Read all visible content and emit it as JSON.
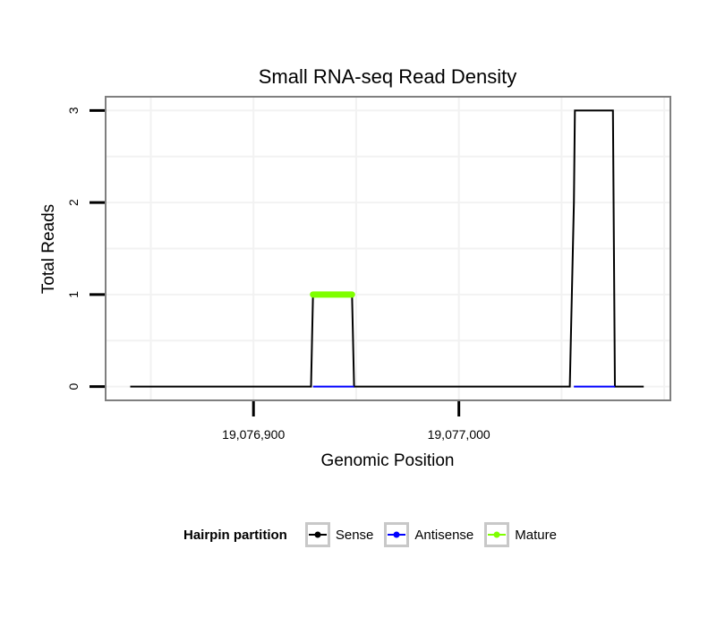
{
  "chart_data": {
    "type": "line",
    "title": "Small RNA-seq Read Density",
    "xlabel": "Genomic Position",
    "ylabel": "Total Reads",
    "xlim": [
      19076828,
      19077103
    ],
    "ylim": [
      -0.15,
      3.15
    ],
    "x_ticks": [
      19076900,
      19077000
    ],
    "x_tick_labels": [
      "19,076,900",
      "19,077,000"
    ],
    "y_ticks": [
      0,
      1,
      2,
      3
    ],
    "y_tick_labels": [
      "0",
      "1",
      "2",
      "3"
    ],
    "grid": true,
    "legend_position": "bottom",
    "series": [
      {
        "name": "Sense",
        "color": "#000000",
        "points": [
          [
            19076840,
            0
          ],
          [
            19076928,
            0
          ],
          [
            19076929,
            1
          ],
          [
            19076948,
            1
          ],
          [
            19076949,
            0
          ],
          [
            19077054,
            0
          ],
          [
            19077056,
            2
          ],
          [
            19077056.5,
            3
          ],
          [
            19077075,
            3
          ],
          [
            19077076,
            0
          ],
          [
            19077090,
            0
          ]
        ]
      },
      {
        "name": "Antisense",
        "color": "#0000ff",
        "points": [
          [
            19076929,
            0
          ],
          [
            19076949,
            0
          ],
          [
            19077056,
            0
          ],
          [
            19077076,
            0
          ]
        ]
      },
      {
        "name": "Mature",
        "color": "#7fff00",
        "points": [
          [
            19076929,
            1
          ],
          [
            19076948,
            1
          ]
        ]
      }
    ]
  },
  "legend": {
    "title": "Hairpin partition",
    "items": [
      {
        "label": "Sense",
        "color": "#000000"
      },
      {
        "label": "Antisense",
        "color": "#0000ff"
      },
      {
        "label": "Mature",
        "color": "#7fff00"
      }
    ]
  }
}
